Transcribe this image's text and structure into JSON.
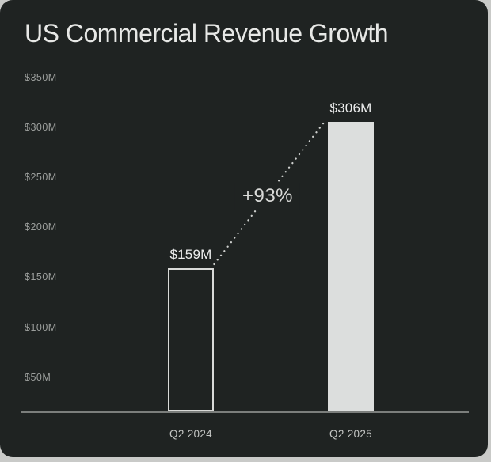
{
  "page": {
    "background": "#c9cac8"
  },
  "card": {
    "background": "#1f2322"
  },
  "chart_data": {
    "type": "bar",
    "title": "US Commercial Revenue Growth",
    "categories": [
      "Q2 2024",
      "Q2 2025"
    ],
    "values": [
      159,
      306
    ],
    "value_labels": [
      "$159M",
      "$306M"
    ],
    "annotation": {
      "text": "+93%"
    },
    "yticks": [
      {
        "value": 350,
        "label": "$350M"
      },
      {
        "value": 300,
        "label": "$300M"
      },
      {
        "value": 250,
        "label": "$250M"
      },
      {
        "value": 200,
        "label": "$200M"
      },
      {
        "value": 150,
        "label": "$150M"
      },
      {
        "value": 100,
        "label": "$100M"
      },
      {
        "value": 50,
        "label": "$50M"
      }
    ],
    "ylim": [
      0,
      350
    ],
    "ytick_step": 50,
    "xlabel": "",
    "ylabel": "",
    "grid": false,
    "legend": null,
    "bar_styles": [
      "outline",
      "filled"
    ],
    "colors": {
      "bar_fill": "#dcdedd",
      "bar_outline": "#d9dad8",
      "title_text": "#e7e8e6",
      "value_label_text": "#eceded",
      "annotation_text": "#d9dad8",
      "ytick_text": "#9b9e9c",
      "xtick_text": "#c4c6c4",
      "axis_line": "#7b7e7c",
      "connector_dotted": "#cfd1cf"
    }
  }
}
